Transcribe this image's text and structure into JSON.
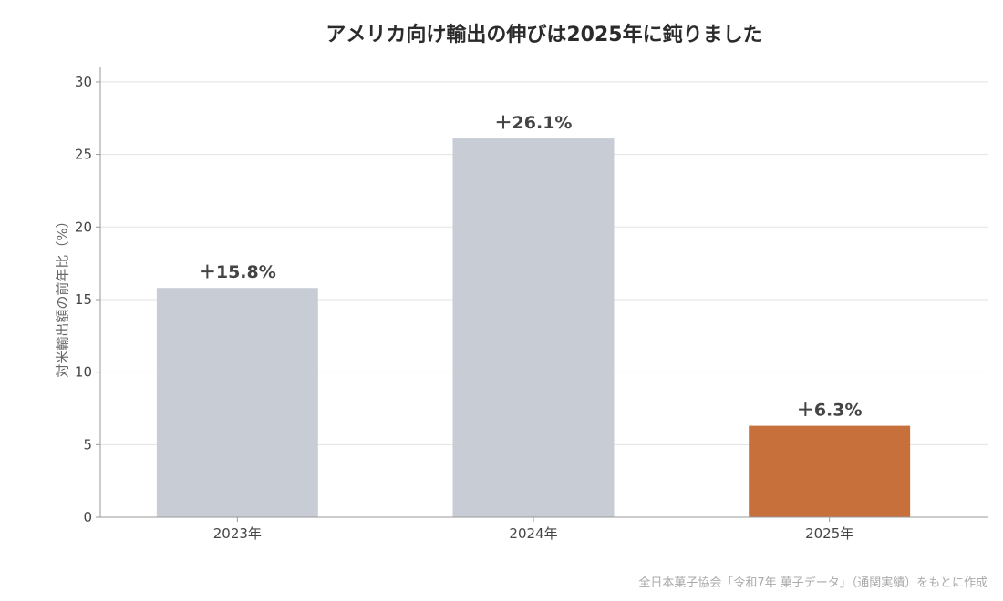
{
  "chart_data": {
    "type": "bar",
    "title": "アメリカ向け輸出の伸びは2025年に鈍りました",
    "ylabel": "対米輸出額の前年比（%）",
    "xlabel": "",
    "categories": [
      "2023年",
      "2024年",
      "2025年"
    ],
    "values": [
      15.8,
      26.1,
      6.3
    ],
    "data_labels": [
      "＋15.8%",
      "＋26.1%",
      "＋6.3%"
    ],
    "colors": [
      "#c8ccd5",
      "#c8ccd5",
      "#c8703c"
    ],
    "ylim": [
      0,
      31
    ],
    "yticks": [
      0,
      5,
      10,
      15,
      20,
      25,
      30
    ],
    "grid": true,
    "source": "全日本菓子協会「令和7年 菓子データ」（通関実績）をもとに作成"
  }
}
